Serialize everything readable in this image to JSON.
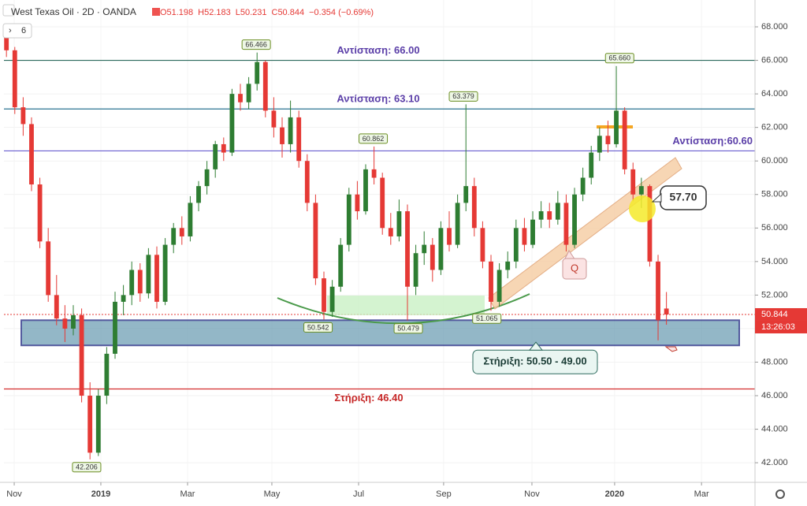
{
  "chart_data": {
    "type": "candlestick",
    "title": "West Texas Oil · 2D · OANDA",
    "ohlc_header": [
      "O51.198",
      "H52.183",
      "L50.231",
      "C50.844",
      "−0.354 (−0.69%)"
    ],
    "indicator_count": 6,
    "up_color": "#2e7d32",
    "down_color": "#e53935",
    "grid": true,
    "ylim": [
      40.83,
      69.6
    ],
    "yticks": [
      {
        "value": 42,
        "label": "42.000"
      },
      {
        "value": 44,
        "label": "44.000"
      },
      {
        "value": 46,
        "label": "46.000"
      },
      {
        "value": 48,
        "label": "48.000"
      },
      {
        "value": 50,
        "label": "50.000"
      },
      {
        "value": 52,
        "label": "52.000"
      },
      {
        "value": 54,
        "label": "54.000"
      },
      {
        "value": 56,
        "label": "56.000"
      },
      {
        "value": 58,
        "label": "58.000"
      },
      {
        "value": 60,
        "label": "60.000"
      },
      {
        "value": 62,
        "label": "62.000"
      },
      {
        "value": 64,
        "label": "64.000"
      },
      {
        "value": 66,
        "label": "66.000"
      },
      {
        "value": 68,
        "label": "68.000"
      }
    ],
    "xlim": [
      -0.3,
      89.6
    ],
    "xticks": [
      {
        "value": 0.93,
        "label": "Nov"
      },
      {
        "value": 11.3,
        "label": "2019"
      },
      {
        "value": 21.68,
        "label": "Mar"
      },
      {
        "value": 31.77,
        "label": "May"
      },
      {
        "value": 42.15,
        "label": "Jul"
      },
      {
        "value": 52.33,
        "label": "Sep"
      },
      {
        "value": 62.9,
        "label": "Nov"
      },
      {
        "value": 72.8,
        "label": "2020"
      },
      {
        "value": 83.2,
        "label": "Mar"
      }
    ],
    "candles": [
      [
        67.5,
        68.2,
        66.2,
        66.6
      ],
      [
        66.6,
        66.8,
        62.8,
        63.2
      ],
      [
        63.2,
        63.8,
        61.5,
        62.2
      ],
      [
        62.2,
        62.6,
        58.2,
        58.6
      ],
      [
        58.6,
        59.0,
        54.8,
        55.2
      ],
      [
        55.2,
        56.0,
        51.6,
        52.0
      ],
      [
        52.0,
        53.2,
        50.2,
        50.6
      ],
      [
        50.6,
        51.4,
        49.2,
        50.0
      ],
      [
        50.0,
        51.4,
        49.6,
        50.8
      ],
      [
        50.8,
        51.2,
        45.6,
        46.0
      ],
      [
        46.0,
        46.8,
        42.2,
        42.6
      ],
      [
        42.6,
        46.4,
        42.4,
        46.0
      ],
      [
        46.0,
        48.9,
        45.5,
        48.5
      ],
      [
        48.5,
        52.2,
        48.2,
        51.6
      ],
      [
        51.6,
        52.6,
        50.8,
        52.0
      ],
      [
        52.0,
        54.0,
        51.4,
        53.5
      ],
      [
        53.5,
        53.9,
        51.6,
        52.1
      ],
      [
        52.1,
        54.8,
        51.8,
        54.4
      ],
      [
        54.4,
        54.9,
        51.2,
        51.6
      ],
      [
        51.6,
        55.4,
        51.4,
        55.0
      ],
      [
        55.0,
        56.3,
        54.5,
        56.0
      ],
      [
        56.0,
        56.7,
        55.0,
        55.5
      ],
      [
        55.5,
        57.9,
        55.2,
        57.5
      ],
      [
        57.5,
        58.8,
        57.0,
        58.5
      ],
      [
        58.5,
        60.0,
        58.0,
        59.5
      ],
      [
        59.5,
        61.2,
        59.0,
        61.0
      ],
      [
        61.0,
        61.4,
        60.0,
        60.5
      ],
      [
        60.5,
        64.3,
        60.3,
        64.0
      ],
      [
        64.0,
        64.6,
        63.0,
        63.5
      ],
      [
        63.5,
        65.0,
        63.1,
        64.6
      ],
      [
        64.6,
        66.466,
        64.2,
        65.9
      ],
      [
        65.9,
        66.0,
        62.6,
        63.0
      ],
      [
        63.0,
        63.8,
        61.4,
        62.0
      ],
      [
        62.0,
        62.6,
        60.2,
        61.0
      ],
      [
        61.0,
        63.6,
        60.5,
        62.6
      ],
      [
        62.6,
        63.0,
        59.6,
        60.0
      ],
      [
        60.0,
        60.4,
        57.0,
        57.5
      ],
      [
        57.5,
        58.0,
        52.6,
        53.0
      ],
      [
        53.0,
        53.4,
        50.542,
        51.0
      ],
      [
        51.0,
        52.9,
        50.7,
        52.5
      ],
      [
        52.5,
        55.4,
        52.2,
        55.0
      ],
      [
        55.0,
        58.4,
        54.6,
        58.0
      ],
      [
        58.0,
        58.8,
        56.5,
        57.0
      ],
      [
        57.0,
        59.8,
        56.8,
        59.5
      ],
      [
        59.5,
        60.862,
        58.6,
        59.0
      ],
      [
        59.0,
        59.3,
        55.6,
        56.0
      ],
      [
        56.0,
        56.9,
        55.0,
        55.5
      ],
      [
        55.5,
        57.7,
        55.2,
        57.0
      ],
      [
        57.0,
        57.4,
        50.479,
        52.5
      ],
      [
        52.5,
        55.0,
        52.0,
        54.5
      ],
      [
        54.5,
        55.8,
        53.8,
        55.0
      ],
      [
        55.0,
        55.4,
        52.8,
        53.5
      ],
      [
        53.5,
        56.4,
        53.2,
        56.0
      ],
      [
        56.0,
        57.0,
        54.6,
        55.0
      ],
      [
        55.0,
        58.0,
        54.8,
        57.5
      ],
      [
        57.5,
        63.379,
        57.0,
        58.5
      ],
      [
        58.5,
        59.0,
        55.5,
        56.0
      ],
      [
        56.0,
        56.4,
        53.6,
        54.0
      ],
      [
        54.0,
        54.4,
        51.065,
        51.6
      ],
      [
        51.6,
        53.9,
        51.3,
        53.5
      ],
      [
        53.5,
        54.6,
        53.0,
        54.0
      ],
      [
        54.0,
        56.5,
        53.6,
        56.0
      ],
      [
        56.0,
        56.6,
        54.6,
        55.0
      ],
      [
        55.0,
        57.0,
        54.8,
        56.5
      ],
      [
        56.5,
        57.6,
        56.0,
        57.0
      ],
      [
        57.0,
        57.5,
        56.0,
        56.5
      ],
      [
        56.5,
        58.2,
        56.2,
        57.5
      ],
      [
        57.5,
        58.0,
        54.6,
        55.0
      ],
      [
        55.0,
        58.4,
        54.8,
        58.0
      ],
      [
        58.0,
        59.6,
        57.6,
        59.0
      ],
      [
        59.0,
        60.9,
        58.6,
        60.5
      ],
      [
        60.5,
        62.0,
        60.0,
        61.5
      ],
      [
        61.5,
        62.4,
        60.5,
        61.0
      ],
      [
        61.0,
        65.66,
        60.8,
        63.0
      ],
      [
        63.0,
        63.2,
        59.2,
        59.5
      ],
      [
        59.5,
        59.9,
        57.6,
        58.0
      ],
      [
        58.0,
        59.0,
        57.2,
        58.5
      ],
      [
        58.5,
        58.6,
        53.7,
        54.0
      ],
      [
        54.0,
        54.4,
        49.3,
        50.5
      ],
      [
        51.198,
        52.183,
        50.231,
        50.844
      ]
    ],
    "price_labels": [
      {
        "x": 29.9,
        "value": 66.466,
        "label": "66.466"
      },
      {
        "x": 43.9,
        "value": 60.862,
        "label": "60.862"
      },
      {
        "x": 54.7,
        "value": 63.379,
        "label": "63.379"
      },
      {
        "x": 73.4,
        "value": 65.66,
        "label": "65.660"
      },
      {
        "x": 37.3,
        "value": 50.542,
        "label": "50.542"
      },
      {
        "x": 48.1,
        "value": 50.479,
        "label": "50.479"
      },
      {
        "x": 57.5,
        "value": 51.065,
        "label": "51.065"
      },
      {
        "x": 9.6,
        "value": 42.206,
        "label": "42.206"
      }
    ],
    "levels": [
      {
        "name": "Αντίσταση: 66.00",
        "value": 66,
        "color": "#2e6b5e",
        "label_color": "#5b3fa8"
      },
      {
        "name": "Αντίσταση: 63.10",
        "value": 63.1,
        "color": "#2a7390",
        "label_color": "#5b3fa8"
      },
      {
        "name": "Αντίσταση:60.60",
        "value": 60.6,
        "color": "#6a5fd0",
        "label_color": "#5b3fa8"
      },
      {
        "name": "Στήριξη: 46.40",
        "value": 46.4,
        "color": "#d32f2f",
        "label_color": "#c62828"
      }
    ],
    "support_zone": {
      "name": "Στήριξη: 50.50 - 49.00",
      "high": 50.5,
      "low": 49.0
    },
    "callouts": [
      {
        "value": 57.7,
        "label": "57.70"
      },
      {
        "label": "Q"
      }
    ],
    "last_price": {
      "value": 50.844,
      "label": "50.844"
    },
    "countdown": "13:26:03"
  }
}
